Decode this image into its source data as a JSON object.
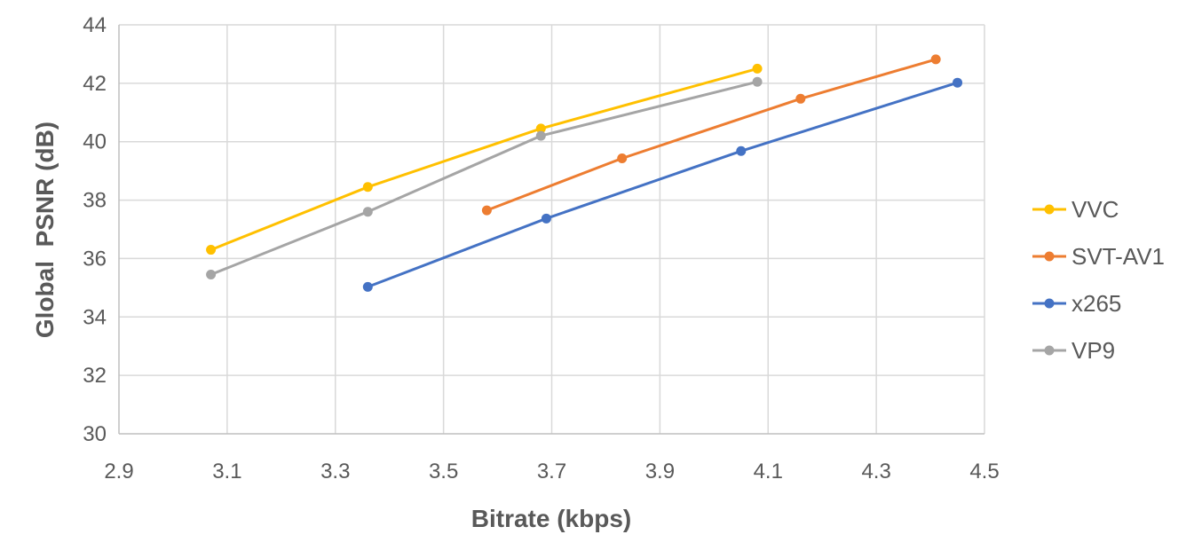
{
  "chart_data": {
    "type": "line",
    "title": "",
    "xlabel": "Bitrate (kbps)",
    "ylabel": "Global  PSNR (dB)",
    "xlim": [
      2.9,
      4.5
    ],
    "ylim": [
      30,
      44
    ],
    "xticks": [
      2.9,
      3.1,
      3.3,
      3.5,
      3.7,
      3.9,
      4.1,
      4.3,
      4.5
    ],
    "yticks": [
      30,
      32,
      34,
      36,
      38,
      40,
      42,
      44
    ],
    "xtick_labels": [
      "2.9",
      "3.1",
      "3.3",
      "3.5",
      "3.7",
      "3.9",
      "4.1",
      "4.3",
      "4.5"
    ],
    "ytick_labels": [
      "30",
      "32",
      "34",
      "36",
      "38",
      "40",
      "42",
      "44"
    ],
    "grid": true,
    "legend_position": "right",
    "series": [
      {
        "name": "VVC",
        "color": "#FFC000",
        "points": [
          [
            3.07,
            36.3
          ],
          [
            3.36,
            38.45
          ],
          [
            3.68,
            40.45
          ],
          [
            4.08,
            42.5
          ]
        ]
      },
      {
        "name": "SVT-AV1",
        "color": "#ED7D31",
        "points": [
          [
            3.58,
            37.65
          ],
          [
            3.83,
            39.43
          ],
          [
            4.16,
            41.47
          ],
          [
            4.41,
            42.82
          ]
        ]
      },
      {
        "name": "x265",
        "color": "#4472C4",
        "points": [
          [
            3.36,
            35.03
          ],
          [
            3.69,
            37.37
          ],
          [
            4.05,
            39.68
          ],
          [
            4.45,
            42.02
          ]
        ]
      },
      {
        "name": "VP9",
        "color": "#A5A5A5",
        "points": [
          [
            3.07,
            35.45
          ],
          [
            3.36,
            37.6
          ],
          [
            3.68,
            40.2
          ],
          [
            4.08,
            42.05
          ]
        ]
      }
    ]
  }
}
